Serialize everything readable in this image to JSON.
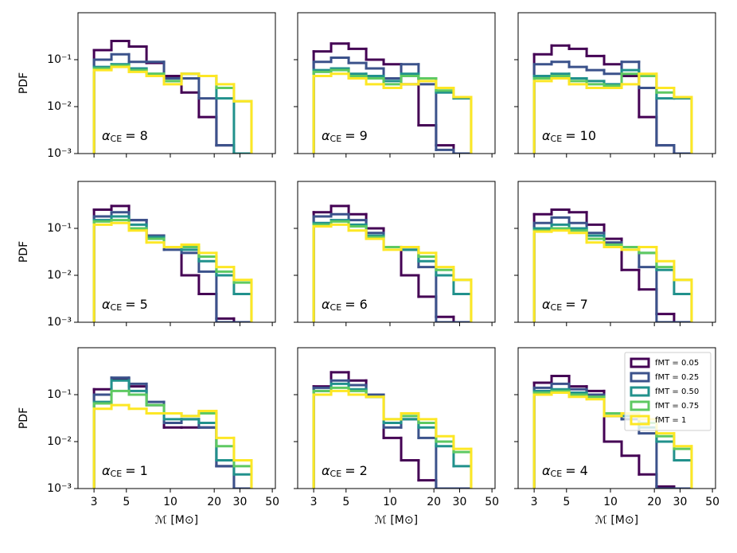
{
  "chart_data": [
    {
      "type": "histogram",
      "annotation": {
        "symbol": "α",
        "subscript": "CE",
        "rest": "= 8"
      },
      "ylabel": "PDF",
      "bins": [
        3,
        3.95,
        5.21,
        6.87,
        9.05,
        11.93,
        15.7,
        20.7,
        27.3,
        36
      ],
      "xscale": "log",
      "yscale": "log",
      "xlim": [
        2.33,
        52.5
      ],
      "ylim": [
        0.001,
        1
      ],
      "xticks": [
        3,
        5,
        10,
        20,
        30,
        50
      ],
      "yticks": [
        {
          "value": 0.001,
          "label": "10⁻³"
        },
        {
          "value": 0.01,
          "label": "10⁻²"
        },
        {
          "value": 0.1,
          "label": "10⁻¹"
        }
      ],
      "series": [
        {
          "color": "#440154",
          "values": [
            0.16,
            0.25,
            0.19,
            0.085,
            0.045,
            0.02,
            0.006,
            0.0015,
            0
          ]
        },
        {
          "color": "#3b528b",
          "values": [
            0.1,
            0.13,
            0.09,
            0.09,
            0.04,
            0.04,
            0.015,
            0.0015,
            0
          ]
        },
        {
          "color": "#21918c",
          "values": [
            0.07,
            0.08,
            0.065,
            0.05,
            0.035,
            0.05,
            0.045,
            0.015,
            0
          ]
        },
        {
          "color": "#5ec962",
          "values": [
            0.065,
            0.075,
            0.06,
            0.05,
            0.035,
            0.05,
            0.045,
            0.025,
            0.013
          ]
        },
        {
          "color": "#fde725",
          "values": [
            0.06,
            0.07,
            0.055,
            0.045,
            0.03,
            0.05,
            0.045,
            0.03,
            0.013
          ]
        }
      ]
    },
    {
      "type": "histogram",
      "annotation": {
        "symbol": "α",
        "subscript": "CE",
        "rest": "= 9"
      },
      "bins": [
        3,
        3.95,
        5.21,
        6.87,
        9.05,
        11.93,
        15.7,
        20.7,
        27.3,
        36
      ],
      "xscale": "log",
      "yscale": "log",
      "xlim": [
        2.33,
        52.5
      ],
      "ylim": [
        0.001,
        1
      ],
      "xticks": [
        3,
        5,
        10,
        20,
        30,
        50
      ],
      "yticks": [
        0.001,
        0.01,
        0.1
      ],
      "series": [
        {
          "color": "#440154",
          "values": [
            0.15,
            0.22,
            0.17,
            0.1,
            0.08,
            0.03,
            0.004,
            0.0015,
            0
          ]
        },
        {
          "color": "#3b528b",
          "values": [
            0.09,
            0.11,
            0.085,
            0.065,
            0.04,
            0.08,
            0.03,
            0.0012,
            0
          ]
        },
        {
          "color": "#21918c",
          "values": [
            0.06,
            0.065,
            0.05,
            0.045,
            0.035,
            0.05,
            0.04,
            0.02,
            0.015
          ]
        },
        {
          "color": "#5ec962",
          "values": [
            0.055,
            0.06,
            0.045,
            0.04,
            0.03,
            0.045,
            0.04,
            0.022,
            0.016
          ]
        },
        {
          "color": "#fde725",
          "values": [
            0.045,
            0.05,
            0.04,
            0.03,
            0.025,
            0.03,
            0.035,
            0.025,
            0.016
          ]
        }
      ]
    },
    {
      "type": "histogram",
      "annotation": {
        "symbol": "α",
        "subscript": "CE",
        "rest": "= 10"
      },
      "bins": [
        3,
        3.95,
        5.21,
        6.87,
        9.05,
        11.93,
        15.7,
        20.7,
        27.3,
        36
      ],
      "xscale": "log",
      "yscale": "log",
      "xlim": [
        2.33,
        52.5
      ],
      "ylim": [
        0.001,
        1
      ],
      "xticks": [
        3,
        5,
        10,
        20,
        30,
        50
      ],
      "yticks": [
        0.001,
        0.01,
        0.1
      ],
      "series": [
        {
          "color": "#440154",
          "values": [
            0.13,
            0.2,
            0.17,
            0.12,
            0.08,
            0.045,
            0.006,
            0.0015,
            0
          ]
        },
        {
          "color": "#3b528b",
          "values": [
            0.08,
            0.09,
            0.07,
            0.06,
            0.05,
            0.09,
            0.025,
            0.0015,
            0
          ]
        },
        {
          "color": "#21918c",
          "values": [
            0.045,
            0.05,
            0.04,
            0.035,
            0.03,
            0.06,
            0.045,
            0.015,
            0.015
          ]
        },
        {
          "color": "#5ec962",
          "values": [
            0.04,
            0.045,
            0.035,
            0.03,
            0.028,
            0.05,
            0.045,
            0.02,
            0.016
          ]
        },
        {
          "color": "#fde725",
          "values": [
            0.035,
            0.04,
            0.03,
            0.025,
            0.025,
            0.03,
            0.05,
            0.025,
            0.016
          ]
        }
      ]
    },
    {
      "type": "histogram",
      "annotation": {
        "symbol": "α",
        "subscript": "CE",
        "rest": "= 5"
      },
      "ylabel": "PDF",
      "bins": [
        3,
        3.95,
        5.21,
        6.87,
        9.05,
        11.93,
        15.7,
        20.7,
        27.3,
        36
      ],
      "xscale": "log",
      "yscale": "log",
      "xlim": [
        2.33,
        52.5
      ],
      "ylim": [
        0.001,
        1
      ],
      "xticks": [
        3,
        5,
        10,
        20,
        30,
        50
      ],
      "yticks": [
        {
          "value": 0.001,
          "label": "10⁻³"
        },
        {
          "value": 0.01,
          "label": "10⁻²"
        },
        {
          "value": 0.1,
          "label": "10⁻¹"
        }
      ],
      "series": [
        {
          "color": "#440154",
          "values": [
            0.25,
            0.3,
            0.15,
            0.07,
            0.04,
            0.01,
            0.004,
            0.0012,
            0
          ]
        },
        {
          "color": "#3b528b",
          "values": [
            0.18,
            0.22,
            0.15,
            0.07,
            0.035,
            0.03,
            0.012,
            0.001,
            0
          ]
        },
        {
          "color": "#21918c",
          "values": [
            0.15,
            0.18,
            0.12,
            0.065,
            0.04,
            0.035,
            0.02,
            0.01,
            0.004
          ]
        },
        {
          "color": "#5ec962",
          "values": [
            0.14,
            0.15,
            0.1,
            0.06,
            0.04,
            0.04,
            0.025,
            0.012,
            0.007
          ]
        },
        {
          "color": "#fde725",
          "values": [
            0.12,
            0.13,
            0.09,
            0.05,
            0.04,
            0.045,
            0.03,
            0.015,
            0.008
          ]
        }
      ]
    },
    {
      "type": "histogram",
      "annotation": {
        "symbol": "α",
        "subscript": "CE",
        "rest": "= 6"
      },
      "bins": [
        3,
        3.95,
        5.21,
        6.87,
        9.05,
        11.93,
        15.7,
        20.7,
        27.3,
        36
      ],
      "xscale": "log",
      "yscale": "log",
      "xlim": [
        2.33,
        52.5
      ],
      "ylim": [
        0.001,
        1
      ],
      "xticks": [
        3,
        5,
        10,
        20,
        30,
        50
      ],
      "yticks": [
        0.001,
        0.01,
        0.1
      ],
      "series": [
        {
          "color": "#440154",
          "values": [
            0.22,
            0.3,
            0.2,
            0.1,
            0.04,
            0.01,
            0.0035,
            0.0013,
            0
          ]
        },
        {
          "color": "#3b528b",
          "values": [
            0.18,
            0.2,
            0.15,
            0.08,
            0.04,
            0.035,
            0.015,
            0.001,
            0
          ]
        },
        {
          "color": "#21918c",
          "values": [
            0.13,
            0.15,
            0.12,
            0.07,
            0.04,
            0.035,
            0.02,
            0.01,
            0.004
          ]
        },
        {
          "color": "#5ec962",
          "values": [
            0.12,
            0.14,
            0.11,
            0.065,
            0.04,
            0.04,
            0.025,
            0.013,
            0.008
          ]
        },
        {
          "color": "#fde725",
          "values": [
            0.11,
            0.12,
            0.09,
            0.06,
            0.035,
            0.04,
            0.03,
            0.015,
            0.008
          ]
        }
      ]
    },
    {
      "type": "histogram",
      "annotation": {
        "symbol": "α",
        "subscript": "CE",
        "rest": "= 7"
      },
      "bins": [
        3,
        3.95,
        5.21,
        6.87,
        9.05,
        11.93,
        15.7,
        20.7,
        27.3,
        36
      ],
      "xscale": "log",
      "yscale": "log",
      "xlim": [
        2.33,
        52.5
      ],
      "ylim": [
        0.001,
        1
      ],
      "xticks": [
        3,
        5,
        10,
        20,
        30,
        50
      ],
      "yticks": [
        0.001,
        0.01,
        0.1
      ],
      "series": [
        {
          "color": "#440154",
          "values": [
            0.2,
            0.25,
            0.22,
            0.12,
            0.06,
            0.013,
            0.005,
            0.0015,
            0
          ]
        },
        {
          "color": "#3b528b",
          "values": [
            0.13,
            0.17,
            0.13,
            0.08,
            0.05,
            0.04,
            0.015,
            0.001,
            0
          ]
        },
        {
          "color": "#21918c",
          "values": [
            0.1,
            0.12,
            0.1,
            0.07,
            0.045,
            0.04,
            0.03,
            0.013,
            0.004
          ]
        },
        {
          "color": "#5ec962",
          "values": [
            0.09,
            0.1,
            0.09,
            0.06,
            0.045,
            0.04,
            0.03,
            0.015,
            0.008
          ]
        },
        {
          "color": "#fde725",
          "values": [
            0.085,
            0.09,
            0.08,
            0.05,
            0.04,
            0.035,
            0.04,
            0.02,
            0.008
          ]
        }
      ]
    },
    {
      "type": "histogram",
      "annotation": {
        "symbol": "α",
        "subscript": "CE",
        "rest": "= 1"
      },
      "ylabel": "PDF",
      "xlabel": "ℳ [M⊙]",
      "bins": [
        3,
        3.95,
        5.21,
        6.87,
        9.05,
        11.93,
        15.7,
        20.7,
        27.3,
        36
      ],
      "xscale": "log",
      "yscale": "log",
      "xlim": [
        2.33,
        52.5
      ],
      "ylim": [
        0.001,
        1
      ],
      "xticks": [
        3,
        5,
        10,
        20,
        30,
        50
      ],
      "yticks": [
        {
          "value": 0.001,
          "label": "10⁻³"
        },
        {
          "value": 0.01,
          "label": "10⁻²"
        },
        {
          "value": 0.1,
          "label": "10⁻¹"
        }
      ],
      "series": [
        {
          "color": "#440154",
          "values": [
            0.13,
            0.22,
            0.15,
            0.06,
            0.02,
            0.02,
            0.02,
            0.003,
            0
          ]
        },
        {
          "color": "#3b528b",
          "values": [
            0.1,
            0.23,
            0.17,
            0.07,
            0.025,
            0.03,
            0.02,
            0.003,
            0
          ]
        },
        {
          "color": "#21918c",
          "values": [
            0.07,
            0.2,
            0.12,
            0.06,
            0.03,
            0.03,
            0.025,
            0.004,
            0.002
          ]
        },
        {
          "color": "#5ec962",
          "values": [
            0.065,
            0.12,
            0.1,
            0.06,
            0.04,
            0.035,
            0.04,
            0.008,
            0.003
          ]
        },
        {
          "color": "#fde725",
          "values": [
            0.05,
            0.06,
            0.05,
            0.04,
            0.04,
            0.035,
            0.045,
            0.012,
            0.004
          ]
        }
      ]
    },
    {
      "type": "histogram",
      "annotation": {
        "symbol": "α",
        "subscript": "CE",
        "rest": "= 2"
      },
      "xlabel": "ℳ [M⊙]",
      "bins": [
        3,
        3.95,
        5.21,
        6.87,
        9.05,
        11.93,
        15.7,
        20.7,
        27.3,
        36
      ],
      "xscale": "log",
      "yscale": "log",
      "xlim": [
        2.33,
        52.5
      ],
      "ylim": [
        0.001,
        1
      ],
      "xticks": [
        3,
        5,
        10,
        20,
        30,
        50
      ],
      "yticks": [
        0.001,
        0.01,
        0.1
      ],
      "series": [
        {
          "color": "#440154",
          "values": [
            0.15,
            0.3,
            0.2,
            0.1,
            0.012,
            0.004,
            0.0015,
            0,
            0
          ]
        },
        {
          "color": "#3b528b",
          "values": [
            0.14,
            0.2,
            0.16,
            0.1,
            0.02,
            0.03,
            0.012,
            0.001,
            0
          ]
        },
        {
          "color": "#21918c",
          "values": [
            0.12,
            0.17,
            0.13,
            0.09,
            0.025,
            0.03,
            0.02,
            0.008,
            0.003
          ]
        },
        {
          "color": "#5ec962",
          "values": [
            0.12,
            0.14,
            0.12,
            0.09,
            0.03,
            0.035,
            0.025,
            0.01,
            0.006
          ]
        },
        {
          "color": "#fde725",
          "values": [
            0.1,
            0.12,
            0.1,
            0.09,
            0.03,
            0.04,
            0.03,
            0.013,
            0.007
          ]
        }
      ]
    },
    {
      "type": "histogram",
      "annotation": {
        "symbol": "α",
        "subscript": "CE",
        "rest": "= 4"
      },
      "xlabel": "ℳ [M⊙]",
      "legend": "upper right",
      "bins": [
        3,
        3.95,
        5.21,
        6.87,
        9.05,
        11.93,
        15.7,
        20.7,
        27.3,
        36
      ],
      "xscale": "log",
      "yscale": "log",
      "xlim": [
        2.33,
        52.5
      ],
      "ylim": [
        0.001,
        1
      ],
      "xticks": [
        3,
        5,
        10,
        20,
        30,
        50
      ],
      "yticks": [
        0.001,
        0.01,
        0.1
      ],
      "series": [
        {
          "name": "fMT = 0.05",
          "color": "#440154",
          "values": [
            0.18,
            0.25,
            0.15,
            0.12,
            0.01,
            0.005,
            0.002,
            0.0011,
            0
          ]
        },
        {
          "name": "fMT = 0.25",
          "color": "#3b528b",
          "values": [
            0.14,
            0.17,
            0.13,
            0.1,
            0.035,
            0.03,
            0.015,
            0.001,
            0
          ]
        },
        {
          "name": "fMT = 0.50",
          "color": "#21918c",
          "values": [
            0.12,
            0.13,
            0.11,
            0.09,
            0.04,
            0.035,
            0.02,
            0.01,
            0.004
          ]
        },
        {
          "name": "fMT = 0.75",
          "color": "#5ec962",
          "values": [
            0.11,
            0.12,
            0.1,
            0.09,
            0.04,
            0.04,
            0.025,
            0.013,
            0.007
          ]
        },
        {
          "name": "fMT = 1",
          "color": "#fde725",
          "values": [
            0.1,
            0.11,
            0.09,
            0.08,
            0.035,
            0.04,
            0.03,
            0.015,
            0.008
          ]
        }
      ]
    }
  ]
}
